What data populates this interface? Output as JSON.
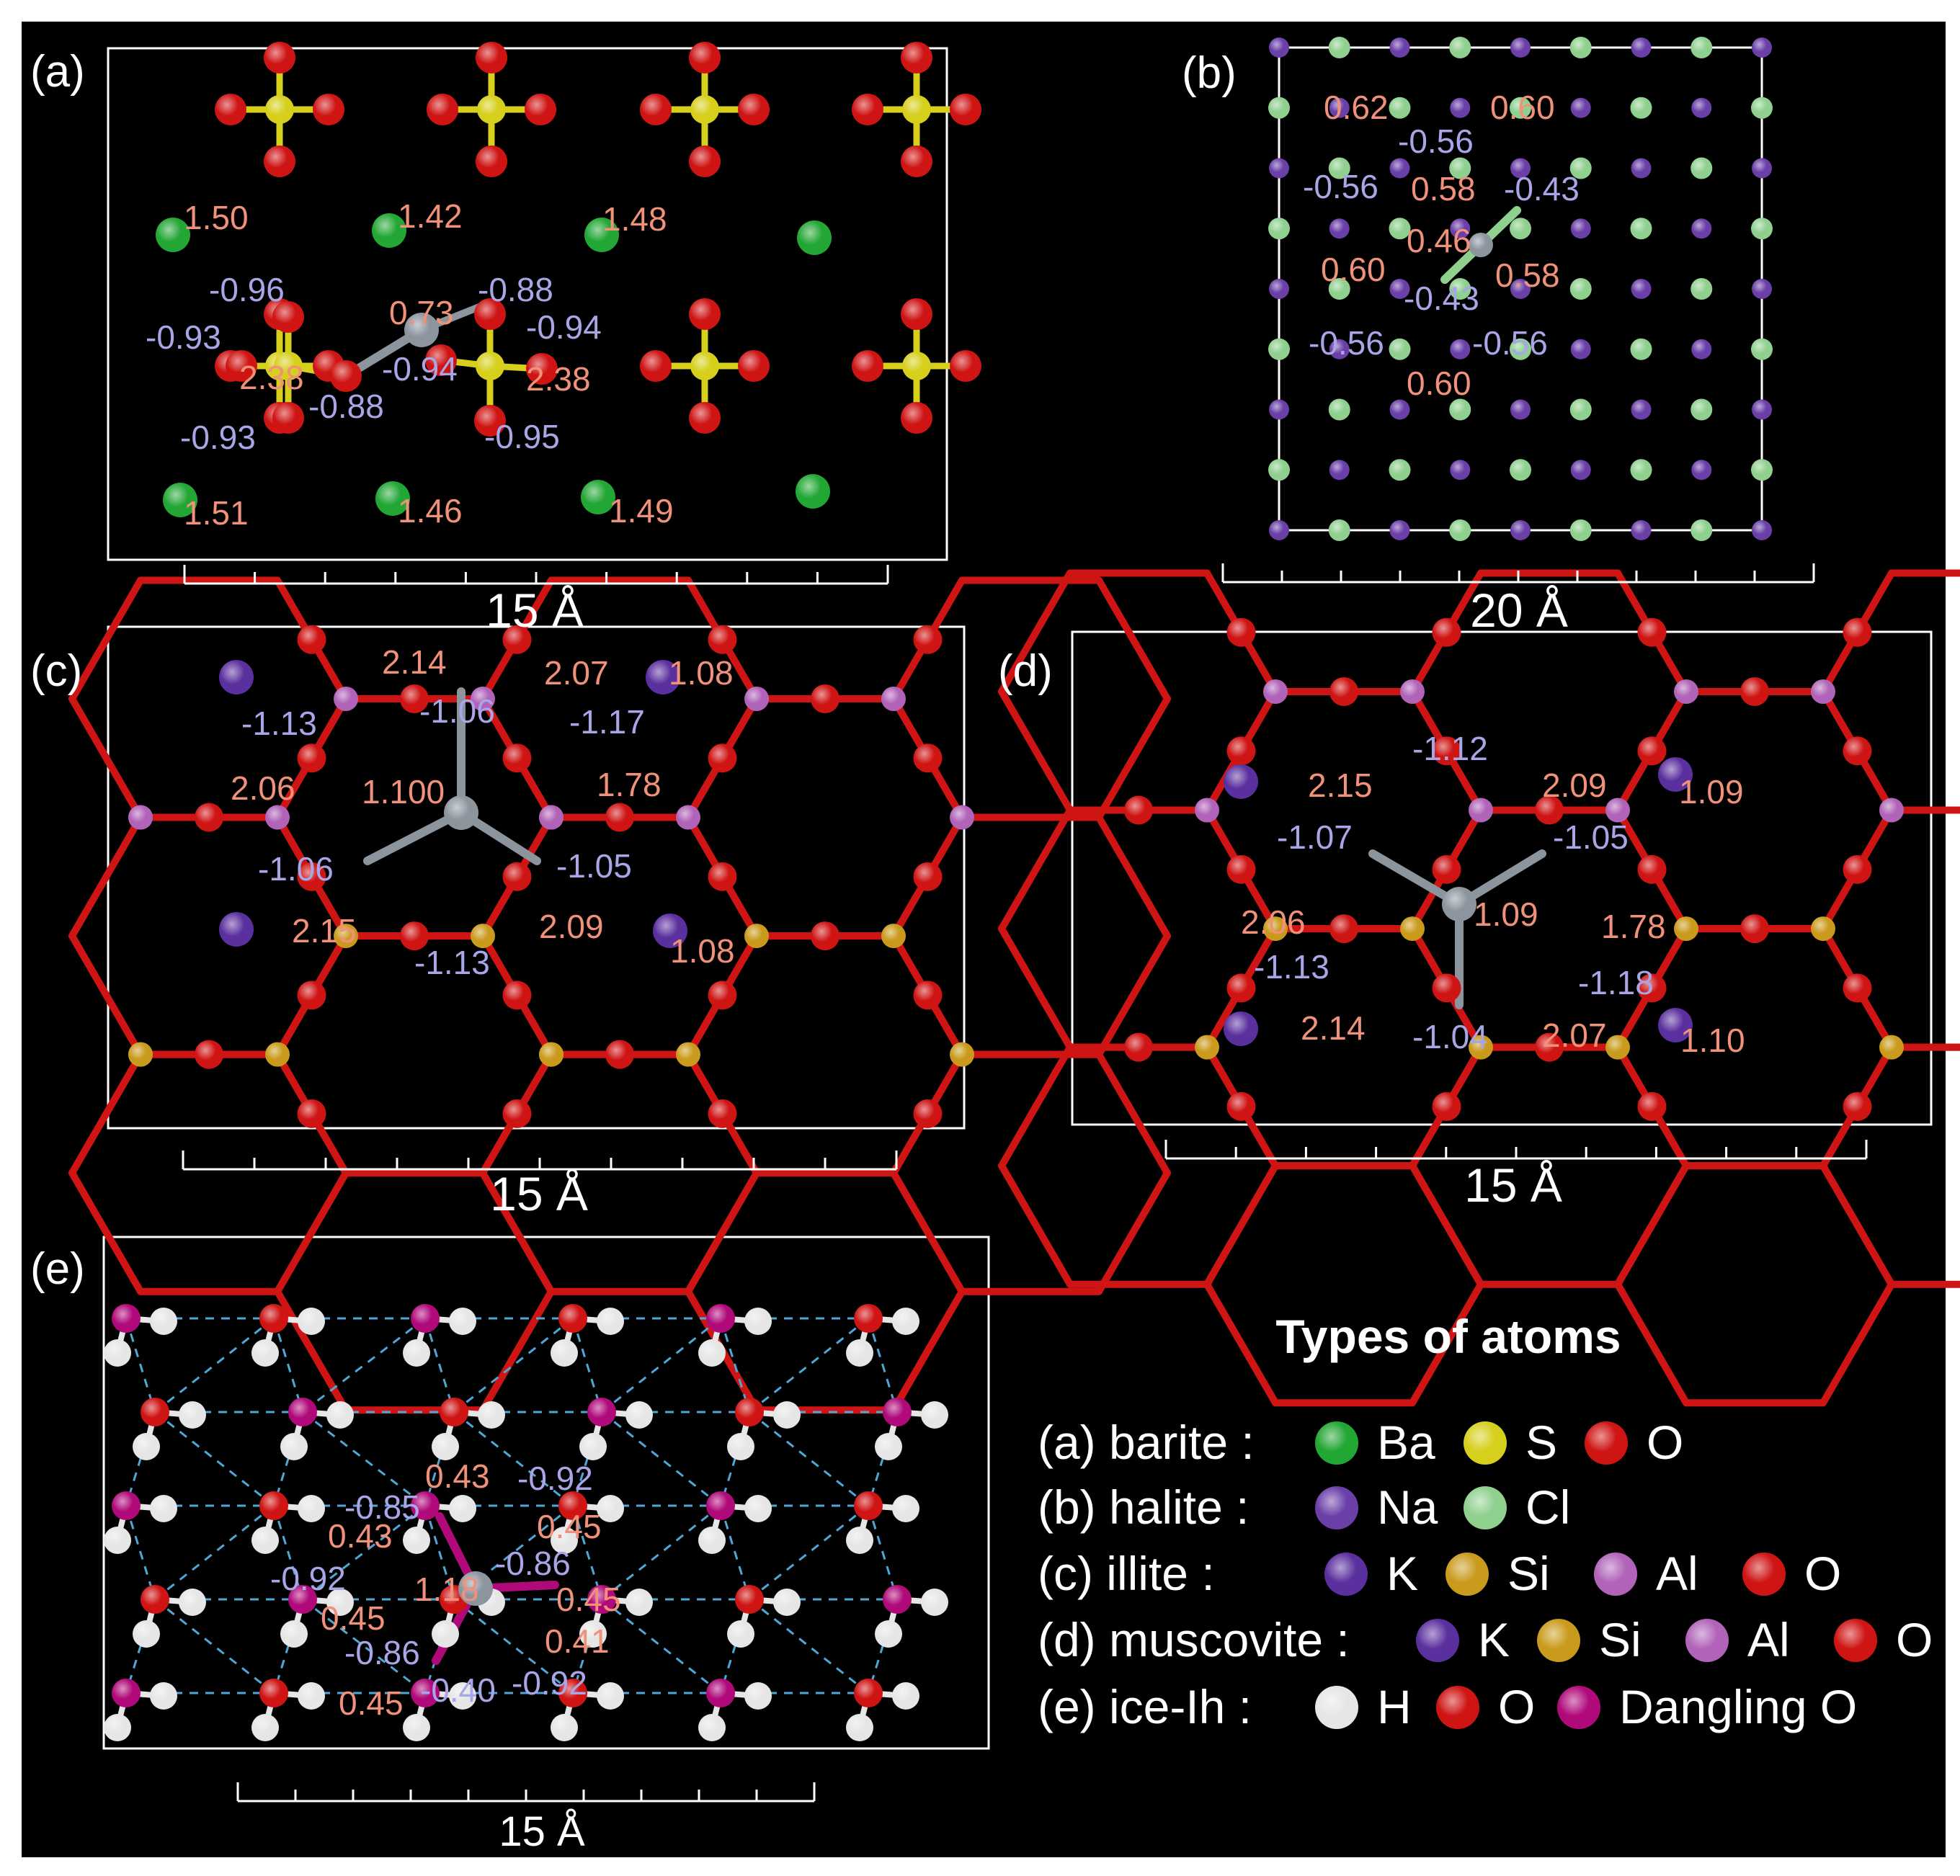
{
  "colors": {
    "background": "#000000",
    "positive_charge": "#f0917a",
    "negative_charge": "#a8a6e6",
    "Ba": "#22a634",
    "S": "#d6cf1c",
    "O": "#cf1414",
    "Na": "#6a3fa8",
    "Cl": "#8fd08f",
    "K": "#5a2f9e",
    "Si": "#c99a1c",
    "Al": "#b063b8",
    "H": "#e6e6e6",
    "Dangling_O": "#b00a7a",
    "adsorbate": "#8c949e"
  },
  "panels": {
    "a": {
      "label": "(a)",
      "scale": "15 Å",
      "positive_labels": [
        "1.50",
        "1.42",
        "1.48",
        "0.73",
        "2.38",
        "2.38",
        "1.51",
        "1.46",
        "1.49"
      ],
      "negative_labels": [
        "-0.96",
        "-0.88",
        "-0.93",
        "-0.94",
        "-0.94",
        "-0.88",
        "-0.93",
        "-0.95"
      ]
    },
    "b": {
      "label": "(b)",
      "scale": "20 Å",
      "positive_labels": [
        "0.62",
        "0.60",
        "0.58",
        "0.46",
        "0.60",
        "0.58",
        "0.60"
      ],
      "negative_labels": [
        "-0.56",
        "-0.56",
        "-0.43",
        "-0.43",
        "-0.56",
        "-0.56"
      ]
    },
    "c": {
      "label": "(c)",
      "scale": "15 Å",
      "positive_labels": [
        "2.14",
        "2.07",
        "1.08",
        "2.06",
        "1.100",
        "1.78",
        "2.15",
        "2.09",
        "1.08"
      ],
      "negative_labels": [
        "-1.13",
        "-1.06",
        "-1.17",
        "-1.06",
        "-1.05",
        "-1.13"
      ]
    },
    "d": {
      "label": "(d)",
      "scale": "15 Å",
      "positive_labels": [
        "2.15",
        "2.09",
        "1.09",
        "2.06",
        "1.09",
        "1.78",
        "2.14",
        "2.07",
        "1.10"
      ],
      "negative_labels": [
        "-1.12",
        "-1.07",
        "-1.05",
        "-1.13",
        "-1.18",
        "-1.04"
      ]
    },
    "e": {
      "label": "(e)",
      "scale": "15 Å",
      "positive_labels": [
        "0.43",
        "0.43",
        "0.45",
        "1.18",
        "0.45",
        "0.45",
        "0.41",
        "0.45"
      ],
      "negative_labels": [
        "-0.92",
        "-0.85",
        "-0.86",
        "-0.92",
        "-0.86",
        "-0.40",
        "-0.92"
      ]
    }
  },
  "legend": {
    "title": "Types of atoms",
    "rows": [
      {
        "name": "(a) barite :",
        "atoms": [
          [
            "Ba",
            "Ba"
          ],
          [
            "S",
            "S"
          ],
          [
            "O",
            "O"
          ]
        ]
      },
      {
        "name": "(b) halite :",
        "atoms": [
          [
            "Na",
            "Na"
          ],
          [
            "Cl",
            "Cl"
          ]
        ]
      },
      {
        "name": "(c) illite :",
        "atoms": [
          [
            "K",
            "K"
          ],
          [
            "Si",
            "Si"
          ],
          [
            "Al",
            "Al"
          ],
          [
            "O",
            "O"
          ]
        ]
      },
      {
        "name": "(d) muscovite :",
        "atoms": [
          [
            "K",
            "K"
          ],
          [
            "Si",
            "Si"
          ],
          [
            "Al",
            "Al"
          ],
          [
            "O",
            "O"
          ]
        ]
      },
      {
        "name": "(e) ice-Ih :",
        "atoms": [
          [
            "H",
            "H"
          ],
          [
            "O",
            "O"
          ],
          [
            "Dangling_O",
            "Dangling O"
          ]
        ]
      }
    ]
  }
}
